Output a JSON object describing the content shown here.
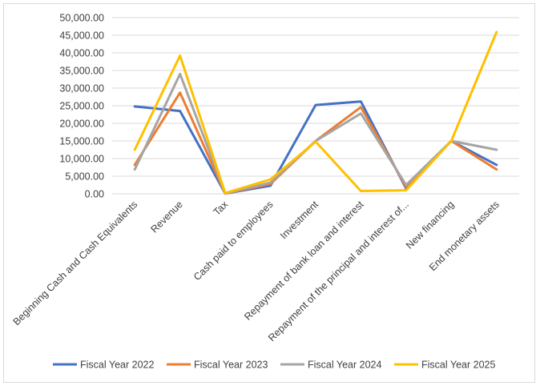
{
  "chart_data": {
    "type": "line",
    "title": "",
    "xlabel": "",
    "ylabel": "",
    "ylim": [
      0,
      50000
    ],
    "y_ticks": [
      "0.00",
      "5,000.00",
      "10,000.00",
      "15,000.00",
      "20,000.00",
      "25,000.00",
      "30,000.00",
      "35,000.00",
      "40,000.00",
      "45,000.00",
      "50,000.00"
    ],
    "categories": [
      "Beginning Cash and Cash Equivalents",
      "Revenue",
      "Tax",
      "Cash paid to employees",
      "Investment",
      "Repayment of bank loan and interest",
      "Repayment of the principal and interest of...",
      "New financing",
      "End monetary assets"
    ],
    "grid": true,
    "legend_position": "bottom",
    "series": [
      {
        "name": "Fiscal Year 2022",
        "color": "#4472C4",
        "values": [
          24800,
          23500,
          100,
          2300,
          25200,
          26200,
          1500,
          15000,
          8200
        ]
      },
      {
        "name": "Fiscal Year 2023",
        "color": "#ED7D31",
        "values": [
          8200,
          28700,
          100,
          2800,
          15000,
          24600,
          2000,
          15000,
          6900
        ]
      },
      {
        "name": "Fiscal Year 2024",
        "color": "#A5A5A5",
        "values": [
          6900,
          34000,
          100,
          3200,
          15000,
          22800,
          2500,
          15000,
          12500
        ]
      },
      {
        "name": "Fiscal Year 2025",
        "color": "#FFC000",
        "values": [
          12500,
          39200,
          200,
          4100,
          14800,
          800,
          1000,
          15000,
          45900
        ]
      }
    ]
  }
}
